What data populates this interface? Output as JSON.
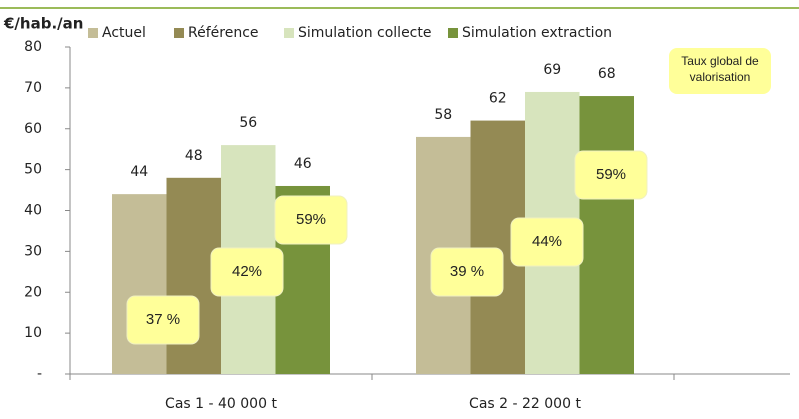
{
  "chart_data": {
    "type": "bar",
    "y_label": "€/hab./an",
    "categories": [
      "Cas 1 - 40 000 t",
      "Cas 2 - 22 000 t"
    ],
    "series": [
      {
        "name": "Actuel",
        "color": "#c4bd97",
        "values": [
          44,
          58
        ]
      },
      {
        "name": "Référence",
        "color": "#948a54",
        "values": [
          48,
          62
        ]
      },
      {
        "name": "Simulation collecte",
        "color": "#d7e4bd",
        "values": [
          56,
          69
        ]
      },
      {
        "name": "Simulation extraction",
        "color": "#77933c",
        "values": [
          46,
          68
        ]
      }
    ],
    "ylim": [
      0,
      80
    ],
    "yticks": [
      {
        "value": 0,
        "label": "-"
      },
      10,
      20,
      30,
      40,
      50,
      60,
      70,
      80
    ],
    "legend": "top",
    "annotation_title": "Taux global de valorisation",
    "annotations": [
      "37 %",
      "42%",
      "59%",
      "39 %",
      "44%",
      "59%"
    ]
  }
}
